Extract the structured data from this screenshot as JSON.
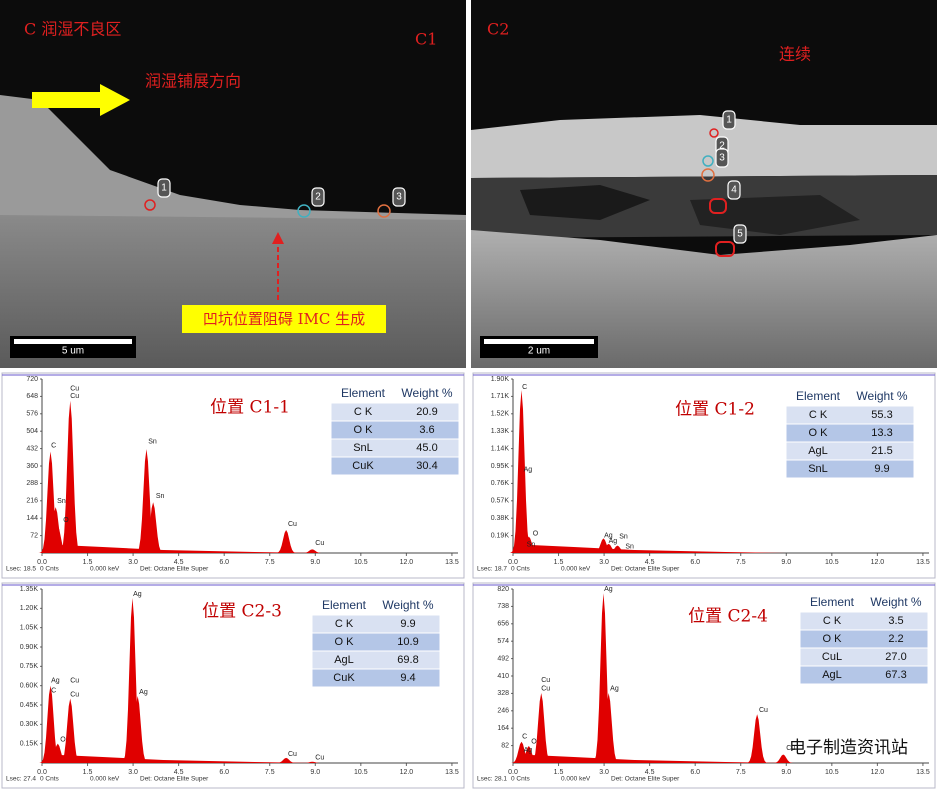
{
  "images": [
    {
      "title": "C  润湿不良区",
      "label": "C1",
      "note": "润湿铺展方向",
      "callout": "凹坑位置阻碍 IMC 生成",
      "scale": "5 um",
      "markers": [
        "1",
        "2",
        "3"
      ]
    },
    {
      "title": "C2",
      "note": "连续",
      "scale": "2 um",
      "markers": [
        "1",
        "2",
        "3",
        "4",
        "5"
      ]
    }
  ],
  "watermark": "电子制造资讯站",
  "chart_data": [
    {
      "type": "spectrum",
      "title": "位置 C1-1",
      "color": "#e00000",
      "xlim": [
        0,
        13.7
      ],
      "xticks": [
        {
          "value": 0,
          "label": "0.0"
        },
        1.5,
        {
          "value": 3,
          "label": "3.0"
        },
        4.5,
        {
          "value": 6,
          "label": "6.0"
        },
        7.5,
        {
          "value": 9,
          "label": "9.0"
        },
        10.5,
        {
          "value": 12,
          "label": "12.0"
        },
        13.5
      ],
      "ylim": [
        0,
        720
      ],
      "yticks": [
        72,
        144,
        216,
        288,
        360,
        432,
        504,
        576,
        648,
        720
      ],
      "x": [
        0.28,
        0.45,
        0.52,
        0.93,
        3.44,
        3.66,
        8.04,
        8.9
      ],
      "values": [
        420,
        190,
        110,
        630,
        430,
        210,
        95,
        15
      ],
      "annotations": [
        {
          "text": "Cu",
          "x": 0.93,
          "y": 680
        },
        {
          "text": "Cu",
          "x": 0.93,
          "y": 650
        },
        {
          "text": "C",
          "x": 0.3,
          "y": 445
        },
        {
          "text": "Sn",
          "x": 0.5,
          "y": 215
        },
        {
          "text": "O",
          "x": 0.7,
          "y": 135
        },
        {
          "text": "Sn",
          "x": 3.5,
          "y": 460
        },
        {
          "text": "Sn",
          "x": 3.75,
          "y": 235
        },
        {
          "text": "Cu",
          "x": 8.1,
          "y": 120
        },
        {
          "text": "Cu",
          "x": 9.0,
          "y": 40
        }
      ],
      "table": {
        "columns": [
          "Element",
          "Weight %"
        ],
        "rows": [
          [
            "C K",
            "20.9"
          ],
          [
            "O K",
            "3.6"
          ],
          [
            "SnL",
            "45.0"
          ],
          [
            "CuK",
            "30.4"
          ]
        ]
      },
      "footer": [
        "Lsec: 18.5",
        "0 Cnts",
        "0.000 keV",
        "Det: Octane Elite Super"
      ]
    },
    {
      "type": "spectrum",
      "title": "位置 C1-2",
      "color": "#e00000",
      "xlim": [
        0,
        13.7
      ],
      "xticks": [
        {
          "value": 0,
          "label": "0.0"
        },
        1.5,
        {
          "value": 3,
          "label": "3.0"
        },
        4.5,
        {
          "value": 6,
          "label": "6.0"
        },
        7.5,
        {
          "value": 9,
          "label": "9.0"
        },
        10.5,
        {
          "value": 12,
          "label": "12.0"
        },
        13.5
      ],
      "ylim": [
        0,
        1900
      ],
      "yticks": [
        {
          "value": 190,
          "label": "0.19K"
        },
        {
          "value": 380,
          "label": "0.38K"
        },
        {
          "value": 570,
          "label": "0.57K"
        },
        {
          "value": 760,
          "label": "0.76K"
        },
        {
          "value": 950,
          "label": "0.95K"
        },
        {
          "value": 1140,
          "label": "1.14K"
        },
        {
          "value": 1330,
          "label": "1.33K"
        },
        {
          "value": 1520,
          "label": "1.52K"
        },
        {
          "value": 1710,
          "label": "1.71K"
        },
        {
          "value": 1900,
          "label": "1.90K"
        }
      ],
      "x": [
        0.28,
        0.4,
        0.52,
        2.98,
        3.15,
        3.44,
        3.66
      ],
      "values": [
        1780,
        60,
        180,
        160,
        100,
        80,
        40
      ],
      "annotations": [
        {
          "text": "C",
          "x": 0.3,
          "y": 1810
        },
        {
          "text": "Ag",
          "x": 0.35,
          "y": 910
        },
        {
          "text": "O",
          "x": 0.65,
          "y": 210
        },
        {
          "text": "Sn",
          "x": 0.45,
          "y": 90
        },
        {
          "text": "Ag",
          "x": 3.0,
          "y": 190
        },
        {
          "text": "Ag",
          "x": 3.15,
          "y": 130
        },
        {
          "text": "Sn",
          "x": 3.5,
          "y": 180
        },
        {
          "text": "Sn",
          "x": 3.7,
          "y": 70
        }
      ],
      "table": {
        "columns": [
          "Element",
          "Weight %"
        ],
        "rows": [
          [
            "C K",
            "55.3"
          ],
          [
            "O K",
            "13.3"
          ],
          [
            "AgL",
            "21.5"
          ],
          [
            "SnL",
            "9.9"
          ]
        ]
      },
      "footer": [
        "Lsec: 18.7",
        "0 Cnts",
        "0.000 keV",
        "Det: Octane Elite Super"
      ]
    },
    {
      "type": "spectrum",
      "title": "位置 C2-3",
      "color": "#e00000",
      "xlim": [
        0,
        13.7
      ],
      "xticks": [
        {
          "value": 0,
          "label": "0.0"
        },
        1.5,
        {
          "value": 3,
          "label": "3.0"
        },
        4.5,
        {
          "value": 6,
          "label": "6.0"
        },
        7.5,
        {
          "value": 9,
          "label": "9.0"
        },
        10.5,
        {
          "value": 12,
          "label": "12.0"
        },
        13.5
      ],
      "ylim": [
        0,
        1350
      ],
      "yticks": [
        {
          "value": 150,
          "label": "0.15K"
        },
        {
          "value": 300,
          "label": "0.30K"
        },
        {
          "value": 450,
          "label": "0.45K"
        },
        {
          "value": 600,
          "label": "0.60K"
        },
        {
          "value": 750,
          "label": "0.75K"
        },
        {
          "value": 900,
          "label": "0.90K"
        },
        {
          "value": 1050,
          "label": "1.05K"
        },
        {
          "value": 1200,
          "label": "1.20K"
        },
        {
          "value": 1350,
          "label": "1.35K"
        }
      ],
      "x": [
        0.28,
        0.52,
        0.93,
        2.98,
        3.15,
        8.04,
        8.9
      ],
      "values": [
        600,
        150,
        500,
        1280,
        520,
        40,
        10
      ],
      "annotations": [
        {
          "text": "Ag",
          "x": 0.3,
          "y": 640
        },
        {
          "text": "C",
          "x": 0.3,
          "y": 560
        },
        {
          "text": "Cu",
          "x": 0.93,
          "y": 640
        },
        {
          "text": "Cu",
          "x": 0.93,
          "y": 530
        },
        {
          "text": "O",
          "x": 0.6,
          "y": 180
        },
        {
          "text": "Ag",
          "x": 3.0,
          "y": 1310
        },
        {
          "text": "Ag",
          "x": 3.2,
          "y": 550
        },
        {
          "text": "Cu",
          "x": 8.1,
          "y": 70
        },
        {
          "text": "Cu",
          "x": 9.0,
          "y": 40
        }
      ],
      "table": {
        "columns": [
          "Element",
          "Weight %"
        ],
        "rows": [
          [
            "C K",
            "9.9"
          ],
          [
            "O K",
            "10.9"
          ],
          [
            "AgL",
            "69.8"
          ],
          [
            "CuK",
            "9.4"
          ]
        ]
      },
      "footer": [
        "Lsec: 27.4",
        "0 Cnts",
        "0.000 keV",
        "Det: Octane Elite Super"
      ]
    },
    {
      "type": "spectrum",
      "title": "位置 C2-4",
      "color": "#e00000",
      "xlim": [
        0,
        13.7
      ],
      "xticks": [
        {
          "value": 0,
          "label": "0.0"
        },
        1.5,
        {
          "value": 3,
          "label": "3.0"
        },
        4.5,
        {
          "value": 6,
          "label": "6.0"
        },
        7.5,
        {
          "value": 9,
          "label": "9.0"
        },
        10.5,
        {
          "value": 12,
          "label": "12.0"
        },
        13.5
      ],
      "ylim": [
        0,
        820
      ],
      "yticks": [
        82,
        164,
        246,
        328,
        410,
        492,
        574,
        656,
        738,
        820
      ],
      "x": [
        0.28,
        0.35,
        0.52,
        0.93,
        2.98,
        3.15,
        8.04,
        8.9
      ],
      "values": [
        100,
        40,
        80,
        330,
        800,
        330,
        230,
        40
      ],
      "annotations": [
        {
          "text": "C",
          "x": 0.3,
          "y": 125
        },
        {
          "text": "Ag",
          "x": 0.35,
          "y": 60
        },
        {
          "text": "O",
          "x": 0.6,
          "y": 100
        },
        {
          "text": "Cu",
          "x": 0.93,
          "y": 390
        },
        {
          "text": "Cu",
          "x": 0.93,
          "y": 350
        },
        {
          "text": "Ag",
          "x": 3.0,
          "y": 820
        },
        {
          "text": "Ag",
          "x": 3.2,
          "y": 350
        },
        {
          "text": "Cu",
          "x": 8.1,
          "y": 250
        },
        {
          "text": "Cu",
          "x": 9.0,
          "y": 70
        }
      ],
      "table": {
        "columns": [
          "Element",
          "Weight %"
        ],
        "rows": [
          [
            "C K",
            "3.5"
          ],
          [
            "O K",
            "2.2"
          ],
          [
            "CuL",
            "27.0"
          ],
          [
            "AgL",
            "67.3"
          ]
        ]
      },
      "footer": [
        "Lsec: 28.1",
        "0 Cnts",
        "0.000 keV",
        "Det: Octane Elite Super"
      ]
    }
  ]
}
